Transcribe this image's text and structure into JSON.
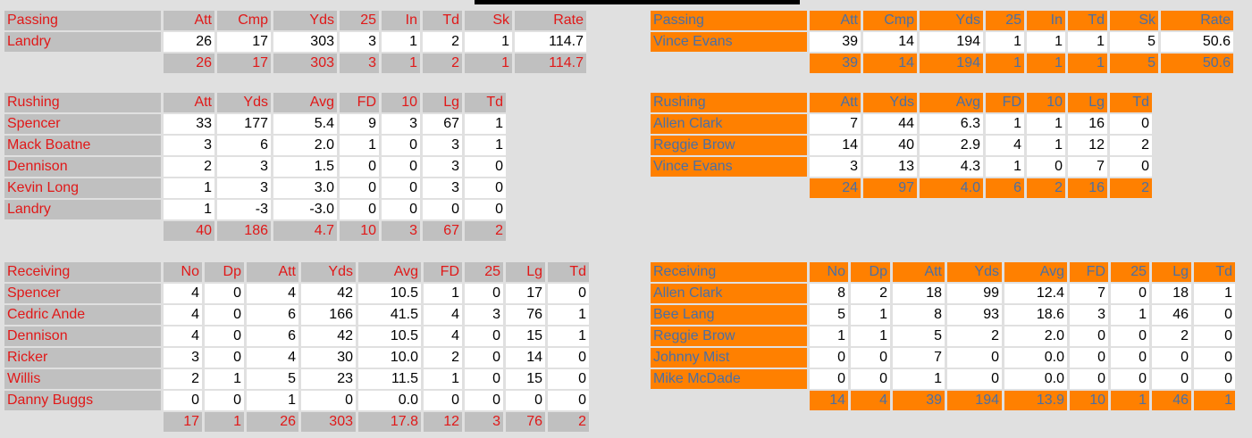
{
  "theme": {
    "home_header_bg": "#c0c0c0",
    "home_text": "#e01818",
    "away_header_bg": "#ff8000",
    "away_text": "#4a6fa5"
  },
  "home": {
    "passing": {
      "headers": [
        "Passing",
        "Att",
        "Cmp",
        "Yds",
        "25",
        "In",
        "Td",
        "Sk",
        "Rate"
      ],
      "rows": [
        [
          "Landry",
          "26",
          "17",
          "303",
          "3",
          "1",
          "2",
          "1",
          "114.7"
        ]
      ],
      "totals": [
        "26",
        "17",
        "303",
        "3",
        "1",
        "2",
        "1",
        "114.7"
      ]
    },
    "rushing": {
      "headers": [
        "Rushing",
        "Att",
        "Yds",
        "Avg",
        "FD",
        "10",
        "Lg",
        "Td"
      ],
      "rows": [
        [
          "Spencer",
          "33",
          "177",
          "5.4",
          "9",
          "3",
          "67",
          "1"
        ],
        [
          "Mack Boatne",
          "3",
          "6",
          "2.0",
          "1",
          "0",
          "3",
          "1"
        ],
        [
          "Dennison",
          "2",
          "3",
          "1.5",
          "0",
          "0",
          "3",
          "0"
        ],
        [
          "Kevin Long",
          "1",
          "3",
          "3.0",
          "0",
          "0",
          "3",
          "0"
        ],
        [
          "Landry",
          "1",
          "-3",
          "-3.0",
          "0",
          "0",
          "0",
          "0"
        ]
      ],
      "totals": [
        "40",
        "186",
        "4.7",
        "10",
        "3",
        "67",
        "2"
      ]
    },
    "receiving": {
      "headers": [
        "Receiving",
        "No",
        "Dp",
        "Att",
        "Yds",
        "Avg",
        "FD",
        "25",
        "Lg",
        "Td"
      ],
      "rows": [
        [
          "Spencer",
          "4",
          "0",
          "4",
          "42",
          "10.5",
          "1",
          "0",
          "17",
          "0"
        ],
        [
          "Cedric Ande",
          "4",
          "0",
          "6",
          "166",
          "41.5",
          "4",
          "3",
          "76",
          "1"
        ],
        [
          "Dennison",
          "4",
          "0",
          "6",
          "42",
          "10.5",
          "4",
          "0",
          "15",
          "1"
        ],
        [
          "Ricker",
          "3",
          "0",
          "4",
          "30",
          "10.0",
          "2",
          "0",
          "14",
          "0"
        ],
        [
          "Willis",
          "2",
          "1",
          "5",
          "23",
          "11.5",
          "1",
          "0",
          "15",
          "0"
        ],
        [
          "Danny Buggs",
          "0",
          "0",
          "1",
          "0",
          "0.0",
          "0",
          "0",
          "0",
          "0"
        ]
      ],
      "totals": [
        "17",
        "1",
        "26",
        "303",
        "17.8",
        "12",
        "3",
        "76",
        "2"
      ]
    }
  },
  "away": {
    "passing": {
      "headers": [
        "Passing",
        "Att",
        "Cmp",
        "Yds",
        "25",
        "In",
        "Td",
        "Sk",
        "Rate"
      ],
      "rows": [
        [
          "Vince Evans",
          "39",
          "14",
          "194",
          "1",
          "1",
          "1",
          "5",
          "50.6"
        ]
      ],
      "totals": [
        "39",
        "14",
        "194",
        "1",
        "1",
        "1",
        "5",
        "50.6"
      ]
    },
    "rushing": {
      "headers": [
        "Rushing",
        "Att",
        "Yds",
        "Avg",
        "FD",
        "10",
        "Lg",
        "Td"
      ],
      "rows": [
        [
          "Allen Clark",
          "7",
          "44",
          "6.3",
          "1",
          "1",
          "16",
          "0"
        ],
        [
          "Reggie Brow",
          "14",
          "40",
          "2.9",
          "4",
          "1",
          "12",
          "2"
        ],
        [
          "Vince Evans",
          "3",
          "13",
          "4.3",
          "1",
          "0",
          "7",
          "0"
        ]
      ],
      "totals": [
        "24",
        "97",
        "4.0",
        "6",
        "2",
        "16",
        "2"
      ]
    },
    "receiving": {
      "headers": [
        "Receiving",
        "No",
        "Dp",
        "Att",
        "Yds",
        "Avg",
        "FD",
        "25",
        "Lg",
        "Td"
      ],
      "rows": [
        [
          "Allen Clark",
          "8",
          "2",
          "18",
          "99",
          "12.4",
          "7",
          "0",
          "18",
          "1"
        ],
        [
          "Bee Lang",
          "5",
          "1",
          "8",
          "93",
          "18.6",
          "3",
          "1",
          "46",
          "0"
        ],
        [
          "Reggie Brow",
          "1",
          "1",
          "5",
          "2",
          "2.0",
          "0",
          "0",
          "2",
          "0"
        ],
        [
          "Johnny Mist",
          "0",
          "0",
          "7",
          "0",
          "0.0",
          "0",
          "0",
          "0",
          "0"
        ],
        [
          "Mike McDade",
          "0",
          "0",
          "1",
          "0",
          "0.0",
          "0",
          "0",
          "0",
          "0"
        ]
      ],
      "totals": [
        "14",
        "4",
        "39",
        "194",
        "13.9",
        "10",
        "1",
        "46",
        "1"
      ]
    }
  }
}
